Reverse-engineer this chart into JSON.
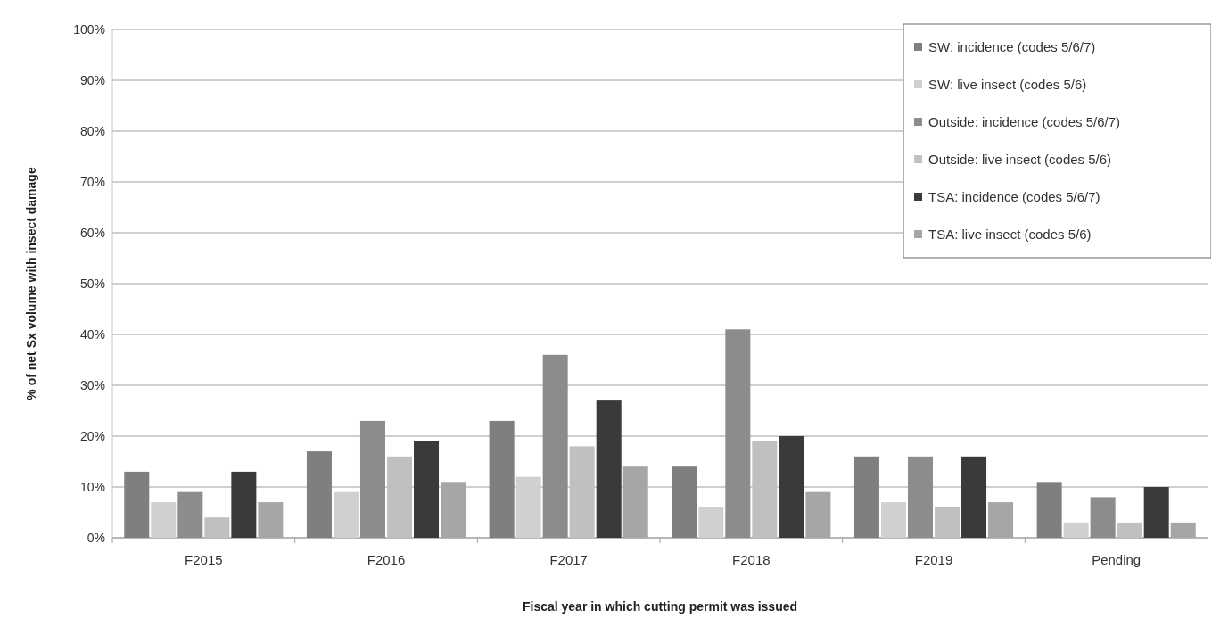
{
  "chart_data": {
    "type": "bar",
    "xlabel": "Fiscal year in which cutting permit was issued",
    "ylabel": "% of net Sx volume with insect damage",
    "categories": [
      "F2015",
      "F2016",
      "F2017",
      "F2018",
      "F2019",
      "Pending"
    ],
    "series": [
      {
        "name": "SW: incidence (codes 5/6/7)",
        "color": "#7f7f7f",
        "values": [
          13,
          17,
          23,
          14,
          16,
          11
        ]
      },
      {
        "name": "SW: live insect (codes 5/6)",
        "color": "#d0d0d0",
        "values": [
          7,
          9,
          12,
          6,
          7,
          3
        ]
      },
      {
        "name": "Outside: incidence (codes 5/6/7)",
        "color": "#8c8c8c",
        "values": [
          9,
          23,
          36,
          41,
          16,
          8
        ]
      },
      {
        "name": "Outside: live insect (codes 5/6)",
        "color": "#c0c0c0",
        "values": [
          4,
          16,
          18,
          19,
          6,
          3
        ]
      },
      {
        "name": "TSA: incidence (codes 5/6/7)",
        "color": "#3a3a3a",
        "values": [
          13,
          19,
          27,
          20,
          16,
          10
        ]
      },
      {
        "name": "TSA: live insect (codes 5/6)",
        "color": "#a6a6a6",
        "values": [
          7,
          11,
          14,
          9,
          7,
          3
        ]
      }
    ],
    "ylim": [
      0,
      100
    ],
    "yticks": [
      {
        "value": 0,
        "label": "0%"
      },
      {
        "value": 10,
        "label": "10%"
      },
      {
        "value": 20,
        "label": "20%"
      },
      {
        "value": 30,
        "label": "30%"
      },
      {
        "value": 40,
        "label": "40%"
      },
      {
        "value": 50,
        "label": "50%"
      },
      {
        "value": 60,
        "label": "60%"
      },
      {
        "value": 70,
        "label": "70%"
      },
      {
        "value": 80,
        "label": "80%"
      },
      {
        "value": 90,
        "label": "90%"
      },
      {
        "value": 100,
        "label": "100%"
      }
    ],
    "grid": "y",
    "legend": "top right"
  }
}
